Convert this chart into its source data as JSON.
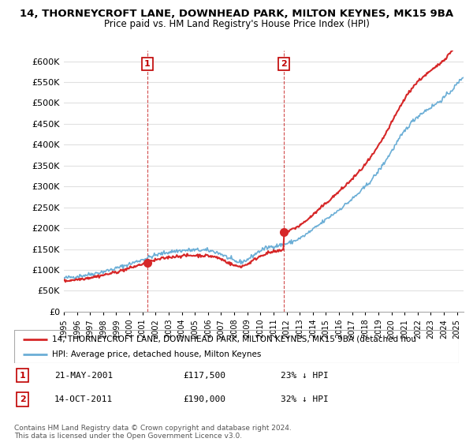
{
  "title_line1": "14, THORNEYCROFT LANE, DOWNHEAD PARK, MILTON KEYNES, MK15 9BA",
  "title_line2": "Price paid vs. HM Land Registry's House Price Index (HPI)",
  "ytick_values": [
    0,
    50000,
    100000,
    150000,
    200000,
    250000,
    300000,
    350000,
    400000,
    450000,
    500000,
    550000,
    600000
  ],
  "ylim": [
    0,
    625000
  ],
  "xlim_start": 1995,
  "xlim_end": 2025.5,
  "xticks": [
    1995,
    1996,
    1997,
    1998,
    1999,
    2000,
    2001,
    2002,
    2003,
    2004,
    2005,
    2006,
    2007,
    2008,
    2009,
    2010,
    2011,
    2012,
    2013,
    2014,
    2015,
    2016,
    2017,
    2018,
    2019,
    2020,
    2021,
    2022,
    2023,
    2024,
    2025
  ],
  "hpi_color": "#6baed6",
  "price_color": "#d62728",
  "sale1_x": 2001.38,
  "sale1_y": 117500,
  "sale2_x": 2011.79,
  "sale2_y": 190000,
  "legend_line1": "14, THORNEYCROFT LANE, DOWNHEAD PARK, MILTON KEYNES, MK15 9BA (detached hou",
  "legend_line2": "HPI: Average price, detached house, Milton Keynes",
  "note1_label": "1",
  "note1_date": "21-MAY-2001",
  "note1_price": "£117,500",
  "note1_hpi": "23% ↓ HPI",
  "note2_label": "2",
  "note2_date": "14-OCT-2011",
  "note2_price": "£190,000",
  "note2_hpi": "32% ↓ HPI",
  "copyright_text": "Contains HM Land Registry data © Crown copyright and database right 2024.\nThis data is licensed under the Open Government Licence v3.0.",
  "grid_color": "#e0e0e0"
}
